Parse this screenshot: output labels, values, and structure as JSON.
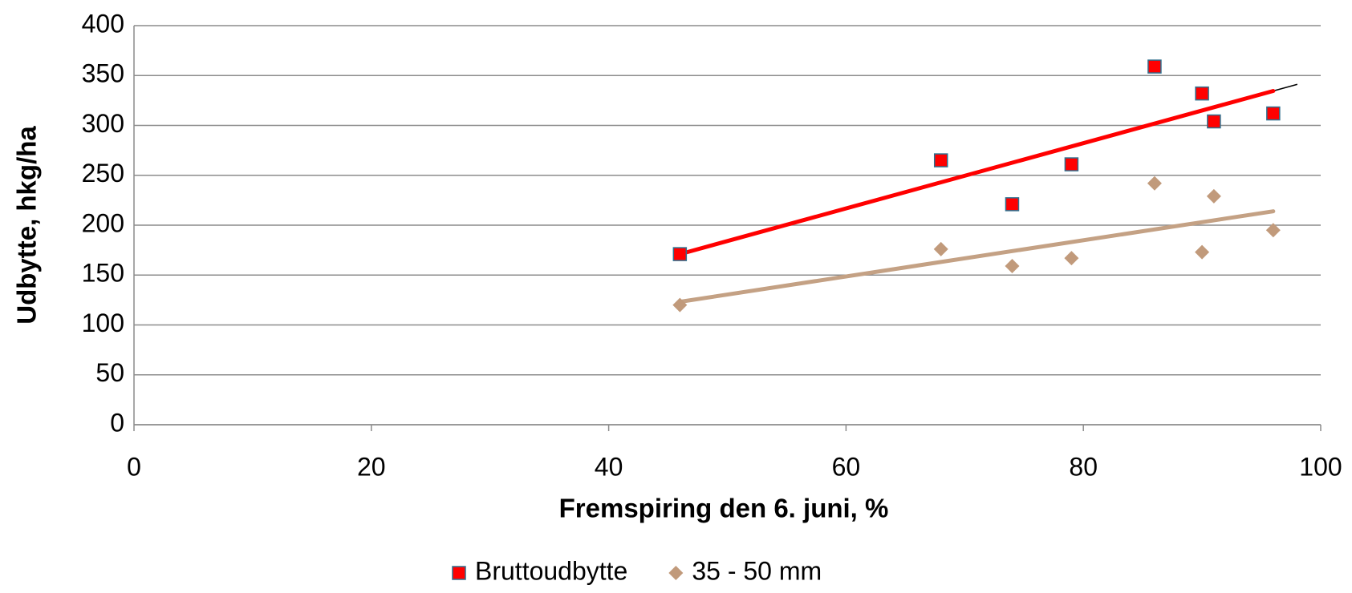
{
  "chart_data": {
    "type": "scatter",
    "x_label": "Fremspiring den 6. juni, %",
    "y_label": "Udbytte, hkg/ha",
    "x": [
      46,
      68,
      74,
      79,
      86,
      90,
      91,
      96
    ],
    "series": [
      {
        "name": "Bruttoudbytte",
        "color": "#ff0000",
        "marker": "square",
        "values": [
          171,
          265,
          221,
          261,
          359,
          332,
          304,
          312
        ]
      },
      {
        "name": "35 - 50 mm",
        "color": "#c19a7b",
        "marker": "diamond",
        "values": [
          120,
          176,
          159,
          167,
          242,
          173,
          229,
          195
        ]
      }
    ],
    "trendline": true,
    "xlim": [
      0,
      100
    ],
    "xticks": [
      0,
      20,
      40,
      60,
      80,
      100
    ],
    "ylim": [
      0,
      400
    ],
    "yticks": [
      0,
      50,
      100,
      150,
      200,
      250,
      300,
      350,
      400
    ],
    "grid": true,
    "legend": "bottom"
  }
}
